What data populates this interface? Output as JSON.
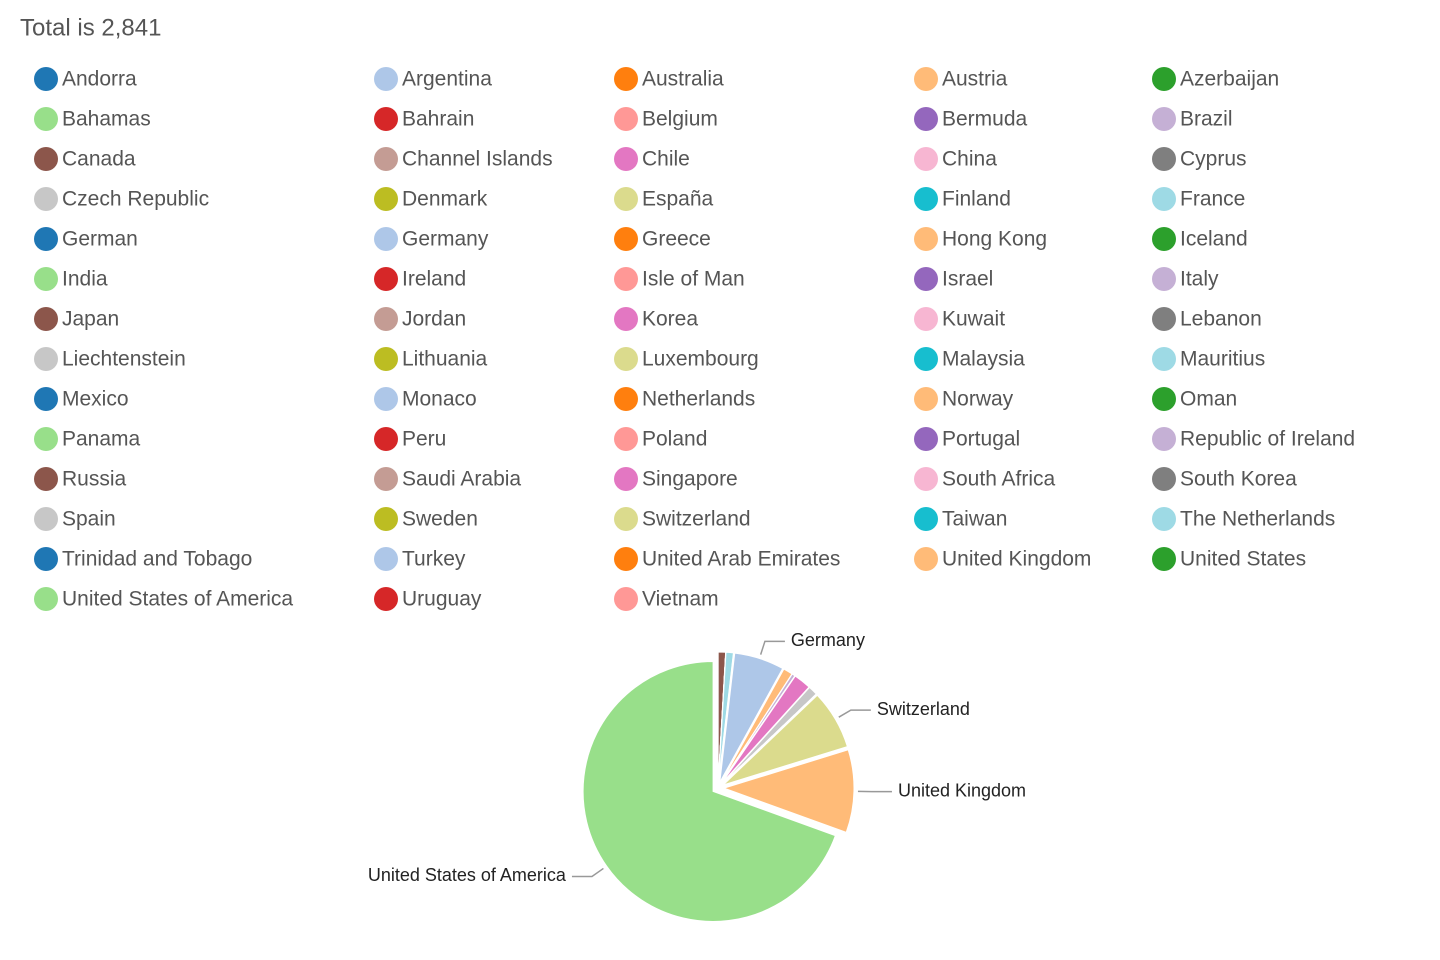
{
  "chart_data": {
    "type": "pie",
    "title": "Total is 2,841",
    "categories": [
      "Andorra",
      "Argentina",
      "Australia",
      "Austria",
      "Azerbaijan",
      "Bahamas",
      "Bahrain",
      "Belgium",
      "Bermuda",
      "Brazil",
      "Canada",
      "Channel Islands",
      "Chile",
      "China",
      "Cyprus",
      "Czech Republic",
      "Denmark",
      "España",
      "Finland",
      "France",
      "German",
      "Germany",
      "Greece",
      "Hong Kong",
      "Iceland",
      "India",
      "Ireland",
      "Isle of Man",
      "Israel",
      "Italy",
      "Japan",
      "Jordan",
      "Korea",
      "Kuwait",
      "Lebanon",
      "Liechtenstein",
      "Lithuania",
      "Luxembourg",
      "Malaysia",
      "Mauritius",
      "Mexico",
      "Monaco",
      "Netherlands",
      "Norway",
      "Oman",
      "Panama",
      "Peru",
      "Poland",
      "Portugal",
      "Republic of Ireland",
      "Russia",
      "Saudi Arabia",
      "Singapore",
      "South Africa",
      "South Korea",
      "Spain",
      "Sweden",
      "Switzerland",
      "Taiwan",
      "The Netherlands",
      "Trinidad and Tobago",
      "Turkey",
      "United Arab Emirates",
      "United Kingdom",
      "United States",
      "United States of America",
      "Uruguay",
      "Vietnam"
    ],
    "values": [
      0,
      0,
      0,
      0,
      0,
      0,
      0,
      0,
      0,
      0,
      26,
      0,
      0,
      0,
      0,
      0,
      0,
      0,
      0,
      26,
      0,
      176,
      0,
      33,
      0,
      0,
      0,
      0,
      0,
      11,
      0,
      0,
      61,
      0,
      0,
      33,
      0,
      0,
      0,
      0,
      0,
      0,
      0,
      0,
      0,
      0,
      0,
      0,
      0,
      0,
      0,
      0,
      0,
      0,
      0,
      0,
      0,
      209,
      0,
      0,
      0,
      0,
      0,
      292,
      0,
      1974,
      0,
      0
    ],
    "colors": [
      "#1f77b4",
      "#aec7e8",
      "#ff7f0e",
      "#ffbb78",
      "#2ca02c",
      "#98df8a",
      "#d62728",
      "#ff9896",
      "#9467bd",
      "#c5b0d5",
      "#8c564b",
      "#c49c94",
      "#e377c2",
      "#f7b6d2",
      "#7f7f7f",
      "#c7c7c7",
      "#bcbd22",
      "#dbdb8d",
      "#17becf",
      "#9edae5"
    ],
    "legend": "top"
  }
}
